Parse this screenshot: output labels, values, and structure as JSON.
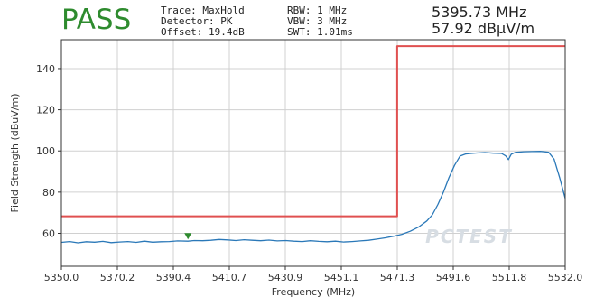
{
  "verdict": "PASS",
  "settings": {
    "trace": "Trace: MaxHold",
    "detector": "Detector: PK",
    "offset": "Offset: 19.4dB",
    "rbw": "RBW: 1 MHz",
    "vbw": "VBW: 3 MHz",
    "swt": "SWT: 1.01ms"
  },
  "marker": {
    "frequency": "5395.73 MHz",
    "level": "57.92 dBµV/m",
    "x": 5395.73,
    "y": 57.92
  },
  "watermark": "PCTEST",
  "colors": {
    "verdict": "#2e8b2e",
    "trace": "#2a78b8",
    "limit": "#e05050",
    "marker": "#2e8b2e",
    "grid": "#d0d0d0"
  },
  "chart_data": {
    "type": "line",
    "xlabel": "Frequency (MHz)",
    "ylabel": "Field Strength (dBuV/m)",
    "xlim": [
      5350.0,
      5532.0
    ],
    "ylim": [
      44,
      154
    ],
    "x_ticks": [
      "5350.0",
      "5370.2",
      "5390.4",
      "5410.7",
      "5430.9",
      "5451.1",
      "5471.3",
      "5491.6",
      "5511.8",
      "5532.0"
    ],
    "y_ticks": [
      60,
      80,
      100,
      120,
      140
    ],
    "grid": true,
    "series": [
      {
        "name": "",
        "kind": "trace",
        "x": [
          5350.0,
          5353.0,
          5356.0,
          5359.0,
          5362.0,
          5365.0,
          5368.0,
          5371.0,
          5374.0,
          5377.0,
          5380.0,
          5383.0,
          5386.0,
          5389.0,
          5392.0,
          5395.7,
          5398.0,
          5401.0,
          5404.0,
          5407.0,
          5410.0,
          5413.0,
          5416.0,
          5419.0,
          5422.0,
          5425.0,
          5428.0,
          5431.0,
          5434.0,
          5437.0,
          5440.0,
          5443.0,
          5446.0,
          5449.0,
          5452.0,
          5455.0,
          5458.0,
          5461.0,
          5464.0,
          5467.0,
          5470.0,
          5473.0,
          5476.0,
          5479.0,
          5482.0,
          5484.0,
          5486.0,
          5488.0,
          5490.0,
          5492.0,
          5494.0,
          5496.0,
          5498.0,
          5500.0,
          5503.0,
          5506.0,
          5509.0,
          5510.5,
          5511.5,
          5512.5,
          5514.0,
          5517.0,
          5520.0,
          5523.0,
          5526.0,
          5528.0,
          5530.0,
          5532.0
        ],
        "y": [
          55.6,
          56.0,
          55.4,
          55.9,
          55.7,
          56.1,
          55.5,
          55.8,
          56.0,
          55.6,
          56.2,
          55.7,
          55.9,
          56.0,
          56.3,
          56.2,
          56.5,
          56.4,
          56.6,
          57.0,
          56.8,
          56.5,
          56.9,
          56.6,
          56.4,
          56.7,
          56.3,
          56.5,
          56.2,
          56.0,
          56.4,
          56.1,
          55.9,
          56.2,
          55.8,
          56.0,
          56.3,
          56.6,
          57.2,
          57.8,
          58.6,
          59.5,
          61.0,
          63.0,
          66.0,
          69.0,
          74.0,
          80.0,
          87.0,
          93.0,
          97.5,
          98.5,
          98.8,
          99.0,
          99.2,
          98.9,
          98.8,
          97.6,
          95.8,
          98.4,
          99.3,
          99.6,
          99.7,
          99.8,
          99.4,
          96.0,
          87.0,
          77.0
        ]
      },
      {
        "name": "",
        "kind": "limit",
        "x": [
          5350.0,
          5471.3,
          5471.3,
          5532.0
        ],
        "y": [
          68.3,
          68.3,
          150.9,
          150.9
        ]
      }
    ]
  }
}
